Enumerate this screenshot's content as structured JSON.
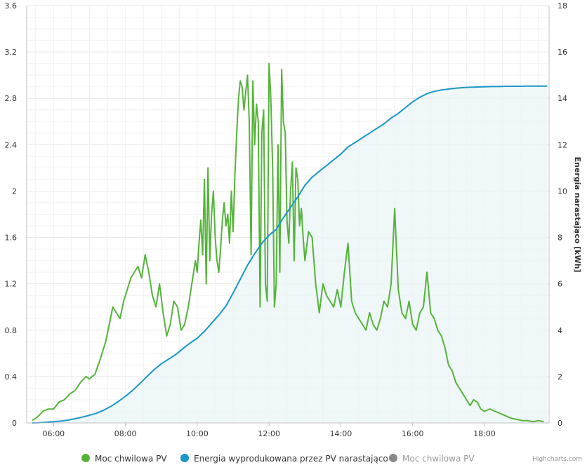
{
  "chart_data": {
    "type": "line",
    "x_unit": "time of day (hours)",
    "xlim": [
      5.25,
      19.8
    ],
    "x_ticks": [
      6,
      8,
      10,
      12,
      14,
      16,
      18
    ],
    "x_tick_labels": [
      "06:00",
      "08:00",
      "10:00",
      "12:00",
      "14:00",
      "16:00",
      "18:00"
    ],
    "y_left": {
      "lim": [
        0,
        3.6
      ],
      "ticks": [
        0,
        0.4,
        0.8,
        1.2,
        1.6,
        2,
        2.4,
        2.8,
        3.2,
        3.6
      ],
      "tick_labels": [
        "0",
        "0.4",
        "0.8",
        "1.2",
        "1.6",
        "2",
        "2.4",
        "2.8",
        "3.2",
        "3.6"
      ],
      "title": ""
    },
    "y_right": {
      "lim": [
        0,
        18
      ],
      "ticks": [
        0,
        2,
        4,
        6,
        8,
        10,
        12,
        14,
        16,
        18
      ],
      "tick_labels": [
        "0",
        "2",
        "4",
        "6",
        "8",
        "10",
        "12",
        "14",
        "16",
        "18"
      ],
      "title": "Energia narastająco [kWh]"
    },
    "grid": true,
    "legend_position": "bottom",
    "series": [
      {
        "name": "Moc chwilowa PV",
        "axis": "left",
        "color": "#55b33a",
        "style": "line",
        "x": [
          5.4,
          5.55,
          5.7,
          5.85,
          6.0,
          6.15,
          6.3,
          6.45,
          6.6,
          6.75,
          6.9,
          7.0,
          7.15,
          7.3,
          7.45,
          7.55,
          7.65,
          7.75,
          7.85,
          7.95,
          8.05,
          8.15,
          8.25,
          8.35,
          8.45,
          8.55,
          8.65,
          8.75,
          8.85,
          8.95,
          9.05,
          9.15,
          9.25,
          9.35,
          9.45,
          9.55,
          9.65,
          9.75,
          9.85,
          9.95,
          10.0,
          10.05,
          10.1,
          10.15,
          10.2,
          10.25,
          10.3,
          10.35,
          10.4,
          10.45,
          10.5,
          10.55,
          10.6,
          10.65,
          10.7,
          10.75,
          10.8,
          10.85,
          10.9,
          10.95,
          11.0,
          11.05,
          11.1,
          11.15,
          11.2,
          11.25,
          11.3,
          11.35,
          11.4,
          11.45,
          11.5,
          11.55,
          11.6,
          11.65,
          11.7,
          11.75,
          11.8,
          11.85,
          11.9,
          11.95,
          12.0,
          12.05,
          12.1,
          12.15,
          12.2,
          12.25,
          12.3,
          12.35,
          12.4,
          12.45,
          12.5,
          12.55,
          12.6,
          12.65,
          12.7,
          12.75,
          12.8,
          12.85,
          12.9,
          12.95,
          13.0,
          13.1,
          13.2,
          13.3,
          13.4,
          13.5,
          13.6,
          13.7,
          13.8,
          13.9,
          14.0,
          14.1,
          14.2,
          14.3,
          14.4,
          14.5,
          14.6,
          14.7,
          14.8,
          14.9,
          15.0,
          15.1,
          15.2,
          15.3,
          15.4,
          15.5,
          15.6,
          15.7,
          15.8,
          15.9,
          16.0,
          16.1,
          16.2,
          16.3,
          16.4,
          16.5,
          16.6,
          16.7,
          16.8,
          16.9,
          17.0,
          17.1,
          17.2,
          17.3,
          17.4,
          17.5,
          17.6,
          17.7,
          17.8,
          17.9,
          18.0,
          18.15,
          18.3,
          18.45,
          18.6,
          18.75,
          18.9,
          19.05,
          19.2,
          19.35,
          19.5,
          19.65
        ],
        "y": [
          0.02,
          0.05,
          0.1,
          0.12,
          0.12,
          0.18,
          0.2,
          0.25,
          0.28,
          0.35,
          0.4,
          0.38,
          0.42,
          0.55,
          0.7,
          0.85,
          1.0,
          0.95,
          0.9,
          1.05,
          1.15,
          1.25,
          1.3,
          1.35,
          1.25,
          1.45,
          1.3,
          1.1,
          1.0,
          1.2,
          0.95,
          0.75,
          0.85,
          1.05,
          1.0,
          0.8,
          0.85,
          1.0,
          1.2,
          1.4,
          1.3,
          1.55,
          1.75,
          1.45,
          2.1,
          1.2,
          2.2,
          1.4,
          1.8,
          2.0,
          1.6,
          1.4,
          1.3,
          1.5,
          1.75,
          1.9,
          1.7,
          1.8,
          1.55,
          2.0,
          1.65,
          2.15,
          2.5,
          2.8,
          2.95,
          2.9,
          2.7,
          2.85,
          3.0,
          2.6,
          1.45,
          2.95,
          2.4,
          2.75,
          2.6,
          1.0,
          2.5,
          2.7,
          1.2,
          1.05,
          3.1,
          2.8,
          2.2,
          1.0,
          1.2,
          2.4,
          1.3,
          3.05,
          2.6,
          2.5,
          1.75,
          1.55,
          2.0,
          2.25,
          1.4,
          2.2,
          2.1,
          1.7,
          1.85,
          1.6,
          1.4,
          1.65,
          1.6,
          1.2,
          0.95,
          1.2,
          1.1,
          1.05,
          1.0,
          1.15,
          1.0,
          1.3,
          1.55,
          1.05,
          0.95,
          0.9,
          0.85,
          0.8,
          0.95,
          0.85,
          0.8,
          0.9,
          1.05,
          1.0,
          1.2,
          1.85,
          1.15,
          0.95,
          0.9,
          1.05,
          0.85,
          0.8,
          0.95,
          1.0,
          1.3,
          0.95,
          0.9,
          0.8,
          0.75,
          0.65,
          0.5,
          0.45,
          0.35,
          0.3,
          0.25,
          0.2,
          0.15,
          0.2,
          0.18,
          0.12,
          0.1,
          0.12,
          0.1,
          0.08,
          0.06,
          0.04,
          0.03,
          0.02,
          0.02,
          0.01,
          0.02,
          0.01
        ]
      },
      {
        "name": "Energia wyprodukowana przez PV narastająco",
        "axis": "right",
        "color": "#1a96c8",
        "style": "area-line",
        "x": [
          5.4,
          5.6,
          5.8,
          6.0,
          6.2,
          6.4,
          6.6,
          6.8,
          7.0,
          7.2,
          7.4,
          7.6,
          7.8,
          8.0,
          8.2,
          8.4,
          8.6,
          8.8,
          9.0,
          9.2,
          9.4,
          9.6,
          9.8,
          10.0,
          10.2,
          10.4,
          10.6,
          10.8,
          11.0,
          11.2,
          11.4,
          11.6,
          11.8,
          12.0,
          12.2,
          12.4,
          12.6,
          12.8,
          13.0,
          13.2,
          13.4,
          13.6,
          13.8,
          14.0,
          14.2,
          14.4,
          14.6,
          14.8,
          15.0,
          15.2,
          15.4,
          15.6,
          15.8,
          16.0,
          16.2,
          16.4,
          16.6,
          16.8,
          17.0,
          17.2,
          17.4,
          17.6,
          17.8,
          18.0,
          18.2,
          18.4,
          18.6,
          18.8,
          19.0,
          19.2,
          19.4,
          19.6,
          19.75
        ],
        "y": [
          0.0,
          0.01,
          0.03,
          0.05,
          0.08,
          0.12,
          0.18,
          0.25,
          0.33,
          0.42,
          0.55,
          0.72,
          0.92,
          1.15,
          1.4,
          1.7,
          2.0,
          2.3,
          2.55,
          2.75,
          2.95,
          3.2,
          3.45,
          3.65,
          3.95,
          4.3,
          4.65,
          5.05,
          5.6,
          6.2,
          6.8,
          7.3,
          7.75,
          8.1,
          8.35,
          8.85,
          9.3,
          9.75,
          10.25,
          10.6,
          10.85,
          11.1,
          11.35,
          11.6,
          11.9,
          12.1,
          12.3,
          12.5,
          12.7,
          12.9,
          13.15,
          13.35,
          13.6,
          13.85,
          14.05,
          14.2,
          14.3,
          14.36,
          14.4,
          14.44,
          14.46,
          14.48,
          14.49,
          14.5,
          14.51,
          14.51,
          14.52,
          14.52,
          14.52,
          14.53,
          14.53,
          14.53,
          14.53
        ]
      },
      {
        "name": "Moc chwilowa PV",
        "axis": "left",
        "color": "#888888",
        "style": "hidden",
        "x": [],
        "y": []
      }
    ],
    "legend": [
      {
        "label": "Moc chwilowa PV",
        "color": "#55b33a",
        "hidden": false
      },
      {
        "label": "Energia wyprodukowana przez PV narastająco",
        "color": "#1a96c8",
        "hidden": false
      },
      {
        "label": "Moc chwilowa PV",
        "color": "#888888",
        "hidden": true
      }
    ],
    "credits": "Highcharts.com"
  }
}
